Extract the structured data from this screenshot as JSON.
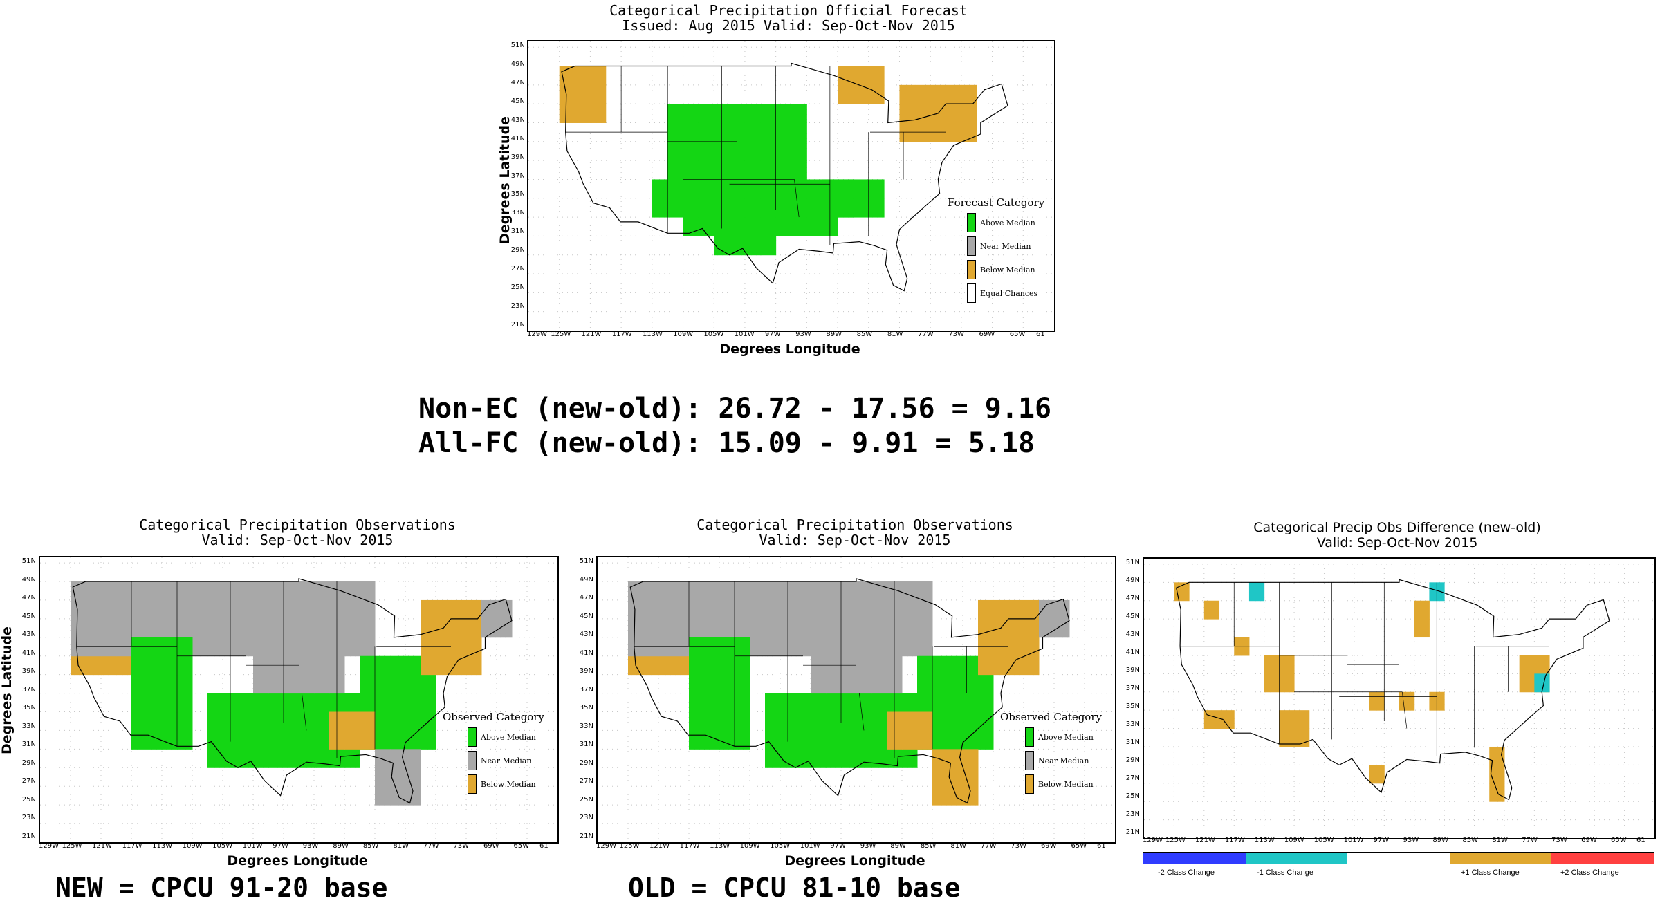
{
  "colors": {
    "above": "#14d614",
    "near": "#a8a8a8",
    "below": "#e0a830",
    "equal": "#ffffff",
    "minus2": "#2f3cff",
    "minus1": "#1fc6c6",
    "plus1": "#e0a830",
    "plus2": "#ff4040"
  },
  "axes": {
    "xlabel": "Degrees Longitude",
    "ylabel": "Degrees Latitude",
    "x_ticks": [
      "129W",
      "125W",
      "121W",
      "117W",
      "113W",
      "109W",
      "105W",
      "101W",
      "97W",
      "93W",
      "89W",
      "85W",
      "81W",
      "77W",
      "73W",
      "69W",
      "65W",
      "61"
    ],
    "y_ticks": [
      "51N",
      "49N",
      "47N",
      "45N",
      "43N",
      "41N",
      "39N",
      "37N",
      "35N",
      "33N",
      "31N",
      "29N",
      "27N",
      "25N",
      "23N",
      "21N"
    ]
  },
  "forecast": {
    "title_line1": "Categorical Precipitation Official Forecast",
    "title_line2": "Issued: Aug 2015 Valid: Sep-Oct-Nov 2015",
    "legend_title": "Forecast Category",
    "legend": [
      "Above Median",
      "Near Median",
      "Below Median",
      "Equal Chances"
    ]
  },
  "scores": {
    "non_ec": "Non-EC (new-old): 26.72 - 17.56 = 9.16",
    "all_fc": "All-FC (new-old): 15.09 - 9.91 = 5.18"
  },
  "obs_new": {
    "title_line1": "Categorical Precipitation Observations",
    "title_line2": "Valid: Sep-Oct-Nov 2015",
    "legend_title": "Observed Category",
    "legend": [
      "Above Median",
      "Near Median",
      "Below Median"
    ],
    "caption": "NEW = CPCU 91-20 base"
  },
  "obs_old": {
    "title_line1": "Categorical Precipitation Observations",
    "title_line2": "Valid: Sep-Oct-Nov 2015",
    "legend_title": "Observed Category",
    "legend": [
      "Above Median",
      "Near Median",
      "Below Median"
    ],
    "caption": "OLD = CPCU 81-10 base"
  },
  "difference": {
    "title_line1": "Categorical Precip Obs Difference (new-old)",
    "title_line2": "Valid: Sep-Oct-Nov 2015",
    "colorbar_labels": [
      "-2 Class Change",
      "-1 Class Change",
      "+1 Class Change",
      "+2 Class Change"
    ]
  }
}
